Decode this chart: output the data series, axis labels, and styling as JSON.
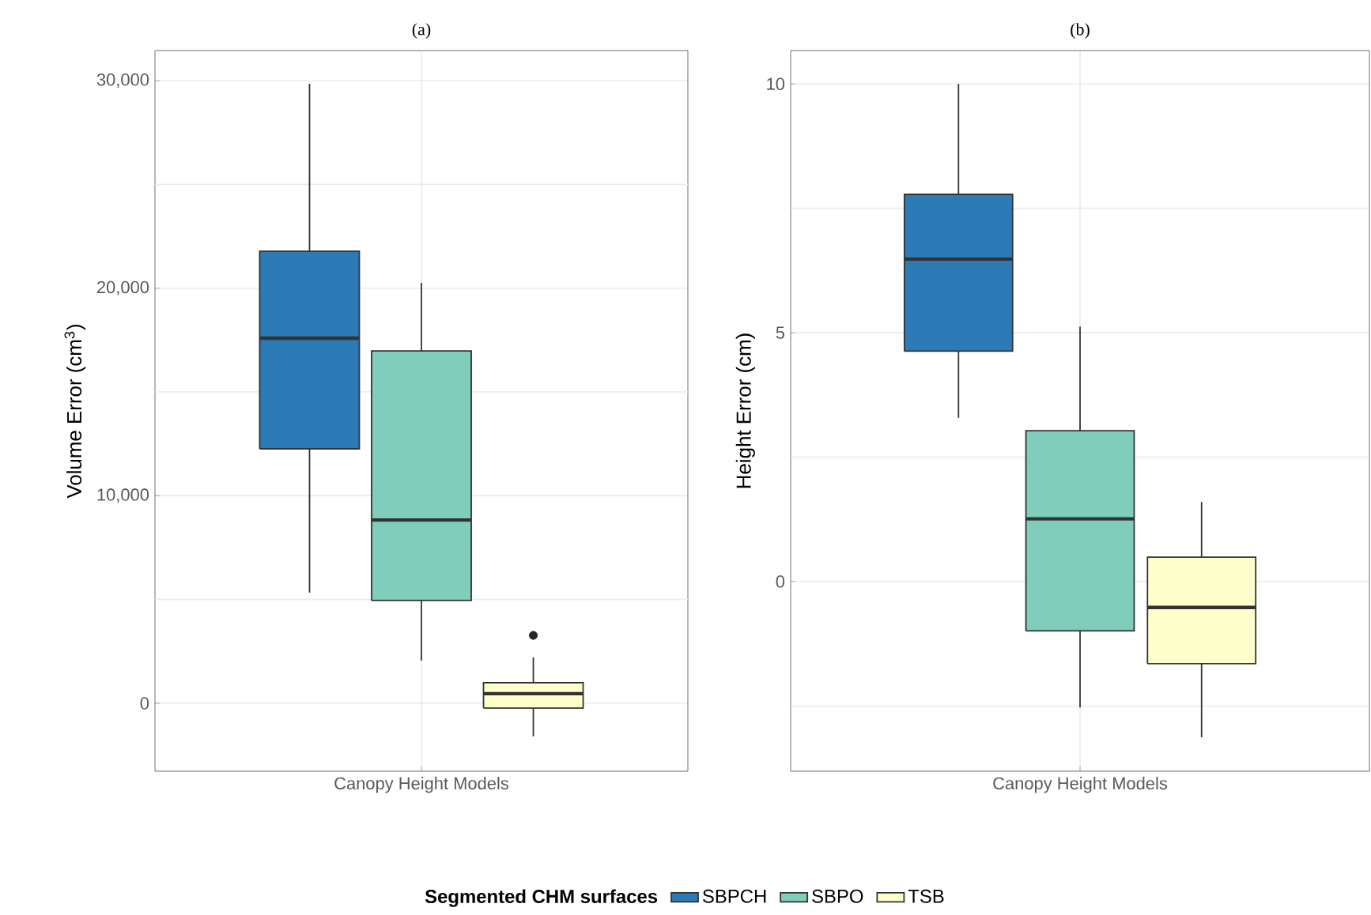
{
  "chart_data": [
    {
      "type": "box",
      "title": "(a)",
      "ylabel": "Volume Error (cm$^{3}$)",
      "categories": [
        "Canopy Height Models"
      ],
      "ylim": [
        -3275,
        31450
      ],
      "yticks": [
        0,
        {
          "value": 5000,
          "label": null
        },
        {
          "value": 10000,
          "label": "10,000"
        },
        {
          "value": 15000,
          "label": null
        },
        {
          "value": 20000,
          "label": "20,000"
        },
        {
          "value": 25000,
          "label": null
        },
        {
          "value": 30000,
          "label": "30,000"
        }
      ],
      "grid": true,
      "legend": "bottom",
      "legend_title": "Segmented CHM surfaces",
      "series": [
        {
          "name": "SBPCH",
          "color": "#2c7bb6",
          "boxes": [
            {
              "low": 5330,
              "q1": 12260,
              "median": 17590,
              "q3": 21780,
              "high": 29850
            }
          ]
        },
        {
          "name": "SBPO",
          "color": "#80cdbb",
          "boxes": [
            {
              "low": 2060,
              "q1": 4950,
              "median": 8830,
              "q3": 16980,
              "high": 20260
            }
          ]
        },
        {
          "name": "TSB",
          "color": "#ffffcc",
          "boxes": [
            {
              "low": -1600,
              "q1": -230,
              "median": 460,
              "q3": 990,
              "high": 2210,
              "outliers": [
                3270
              ]
            }
          ]
        }
      ]
    },
    {
      "type": "box",
      "title": "(b)",
      "ylabel": "Height Error (cm)",
      "categories": [
        "Canopy Height Models"
      ],
      "ylim": [
        -3.81,
        10.67
      ],
      "yticks": [
        {
          "value": -2.5,
          "label": null
        },
        0,
        {
          "value": 2.5,
          "label": null
        },
        5,
        {
          "value": 7.5,
          "label": null
        },
        10
      ],
      "grid": true,
      "series": [
        {
          "color": "#2c7bb6",
          "boxes": [
            {
              "low": 3.29,
              "q1": 4.63,
              "median": 6.48,
              "q3": 7.78,
              "high": 10.0
            }
          ]
        },
        {
          "color": "#80cdbb",
          "boxes": [
            {
              "low": -2.53,
              "q1": -0.99,
              "median": 1.26,
              "q3": 3.03,
              "high": 5.12
            }
          ]
        },
        {
          "color": "#ffffcc",
          "boxes": [
            {
              "low": -3.13,
              "q1": -1.65,
              "median": -0.52,
              "q3": 0.49,
              "high": 1.6
            }
          ]
        }
      ]
    }
  ]
}
